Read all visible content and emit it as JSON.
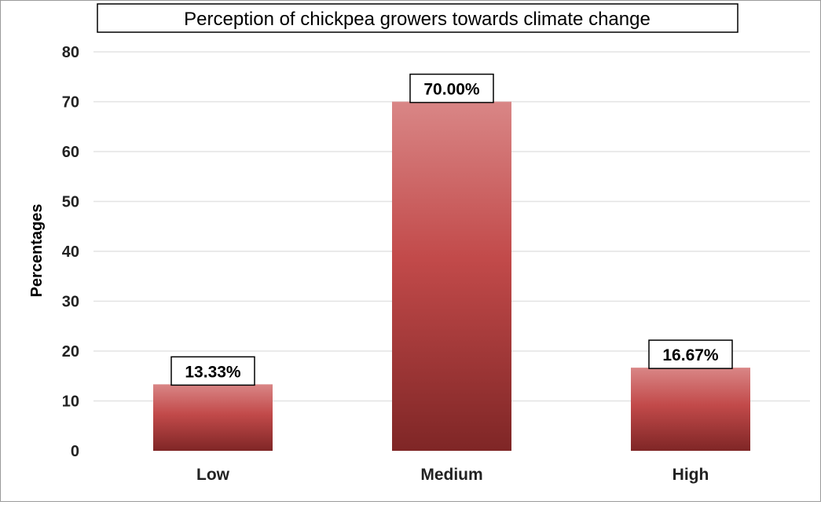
{
  "chart_data": {
    "type": "bar",
    "title": "Perception of chickpea growers towards climate change",
    "xlabel": "",
    "ylabel": "Percentages",
    "categories": [
      "Low",
      "Medium",
      "High"
    ],
    "values": [
      13.33,
      70.0,
      16.67
    ],
    "data_labels": [
      "13.33%",
      "70.00%",
      "16.67%"
    ],
    "ylim": [
      0,
      80
    ],
    "yticks": [
      0,
      10,
      20,
      30,
      40,
      50,
      60,
      70,
      80
    ],
    "grid": true,
    "legend": "none",
    "colors": {
      "bar_top": "#d98686",
      "bar_mid": "#c24a4a",
      "bar_bottom": "#7f2626",
      "grid": "#e3e3e3"
    }
  }
}
